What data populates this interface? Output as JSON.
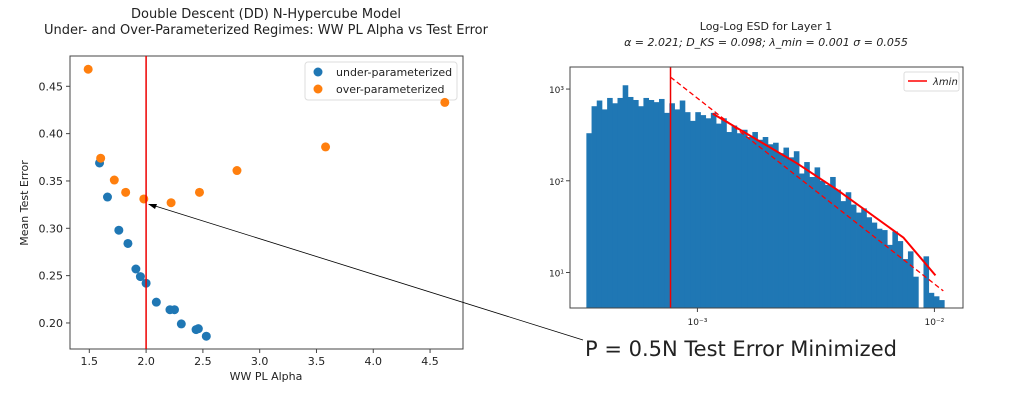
{
  "chart_data": [
    {
      "type": "scatter",
      "title": [
        "Double Descent (DD) N-Hypercube Model",
        "Under- and Over-Parameterized  Regimes: WW PL Alpha vs Test Error"
      ],
      "xlabel": "WW PL Alpha",
      "ylabel": "Mean Test Error",
      "xlim": [
        1.33,
        4.79
      ],
      "ylim": [
        0.1725,
        0.482
      ],
      "xticks": [
        1.5,
        2.0,
        2.5,
        3.0,
        3.5,
        4.0,
        4.5
      ],
      "xtick_labels": [
        "1.5",
        "2.0",
        "2.5",
        "3.0",
        "3.5",
        "4.0",
        "4.5"
      ],
      "yticks": [
        0.2,
        0.25,
        0.3,
        0.35,
        0.4,
        0.45
      ],
      "ytick_labels": [
        "0.20",
        "0.25",
        "0.30",
        "0.35",
        "0.40",
        "0.45"
      ],
      "vline": 2.0,
      "legend_position": "top-right",
      "series": [
        {
          "name": "under-parameterized",
          "color": "#1f77b4",
          "x": [
            1.59,
            1.66,
            1.76,
            1.84,
            1.91,
            1.95,
            2.0,
            2.09,
            2.21,
            2.25,
            2.31,
            2.44,
            2.46,
            2.53
          ],
          "y": [
            0.369,
            0.333,
            0.298,
            0.284,
            0.257,
            0.249,
            0.242,
            0.222,
            0.214,
            0.214,
            0.199,
            0.193,
            0.194,
            0.186
          ]
        },
        {
          "name": "over-parameterized",
          "color": "#ff7f0e",
          "x": [
            1.49,
            1.6,
            1.72,
            1.82,
            1.98,
            2.22,
            2.47,
            2.8,
            3.58,
            4.63
          ],
          "y": [
            0.468,
            0.374,
            0.351,
            0.338,
            0.331,
            0.327,
            0.338,
            0.361,
            0.386,
            0.433
          ]
        }
      ]
    },
    {
      "type": "bar",
      "title": [
        "Log-Log ESD for Layer 1",
        "α = 2.021; D_KS = 0.098; λ_min = 0.001 σ = 0.055"
      ],
      "xscale": "log",
      "yscale": "log",
      "xlim": [
        0.00029,
        0.0132
      ],
      "ylim": [
        4.1,
        1740
      ],
      "xtick_labels": [
        "10⁻³",
        "10⁻²"
      ],
      "xticks": [
        0.001,
        0.01
      ],
      "ytick_labels": [
        "10¹",
        "10²",
        "10³"
      ],
      "yticks": [
        10,
        100,
        1000
      ],
      "legend": "λmin",
      "legend_position": "top-right",
      "bin_range": [
        0.00034,
        0.011
      ],
      "counts": [
        330,
        650,
        750,
        600,
        800,
        700,
        800,
        1100,
        820,
        760,
        650,
        800,
        760,
        720,
        780,
        550,
        700,
        600,
        750,
        560,
        450,
        560,
        520,
        480,
        550,
        420,
        480,
        340,
        400,
        330,
        360,
        300,
        340,
        280,
        300,
        250,
        260,
        200,
        230,
        180,
        210,
        120,
        160,
        110,
        140,
        100,
        90,
        110,
        80,
        60,
        75,
        55,
        45,
        50,
        40,
        35,
        30,
        29,
        20,
        28,
        22,
        14,
        17,
        9,
        4,
        15,
        6,
        5.5,
        5
      ],
      "vline": 0.00077,
      "fit_dashed": {
        "x": [
          0.00077,
          0.0109
        ],
        "y": [
          1350,
          6.3
        ]
      },
      "fit_solid": {
        "x": [
          0.00116,
          0.00263,
          0.00388,
          0.0074,
          0.0101
        ],
        "y": [
          540,
          155,
          80,
          24,
          9.3
        ]
      }
    }
  ],
  "annotation": "P = 0.5N  Test Error Minimized"
}
